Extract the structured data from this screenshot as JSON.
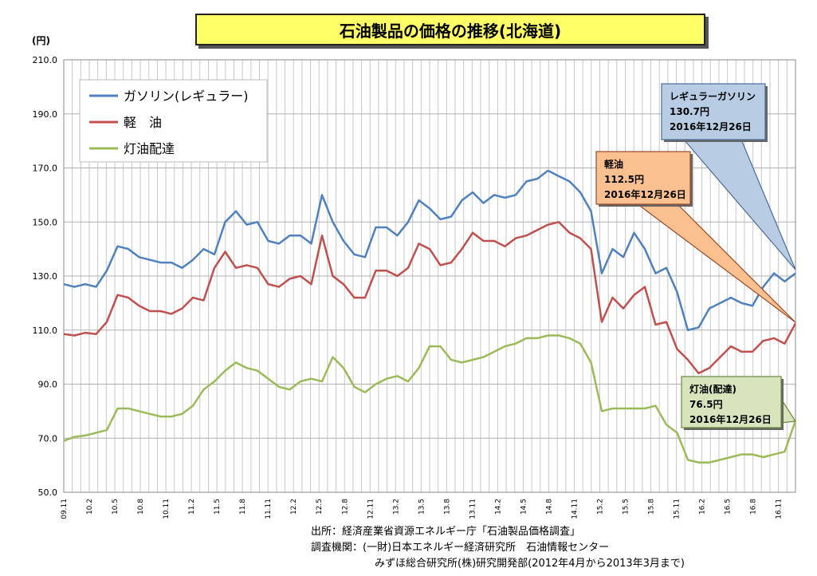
{
  "title": "石油製品の価格の推移(北海道)",
  "unit": "(円)",
  "chart_data": {
    "type": "line",
    "title": "石油製品の価格の推移(北海道)",
    "ylabel": "(円)",
    "ylim": [
      50,
      210
    ],
    "yticks": [
      "210.0",
      "190.0",
      "170.0",
      "150.0",
      "130.0",
      "110.0",
      "90.0",
      "70.0",
      "50.0"
    ],
    "x_tick_labels": [
      "09.11",
      "10.2",
      "10.5",
      "10.8",
      "10.11",
      "11.2",
      "11.5",
      "11.8",
      "11.11",
      "12.2",
      "12.5",
      "12.8",
      "12.11",
      "13.2",
      "13.5",
      "13.8",
      "13.11",
      "14.2",
      "14.5",
      "14.8",
      "14.11",
      "15.2",
      "15.5",
      "15.8",
      "15.11",
      "16.2",
      "16.5",
      "16.8",
      "16.11"
    ],
    "legend": [
      "ガソリン(レギュラー)",
      "軽　油",
      "灯油配達"
    ],
    "series": [
      {
        "name": "ガソリン(レギュラー)",
        "color": "#4f81bd",
        "values": [
          127,
          126,
          127,
          126,
          132,
          141,
          140,
          137,
          136,
          135,
          135,
          133,
          136,
          140,
          138,
          150,
          154,
          149,
          150,
          143,
          142,
          145,
          145,
          142,
          160,
          150,
          143,
          138,
          137,
          148,
          148,
          145,
          150,
          158,
          155,
          151,
          152,
          158,
          161,
          157,
          160,
          159,
          160,
          165,
          166,
          169,
          167,
          165,
          161,
          154,
          131,
          140,
          137,
          146,
          140,
          131,
          133,
          124,
          110,
          111,
          118,
          120,
          122,
          120,
          119,
          126,
          131,
          128,
          131
        ]
      },
      {
        "name": "軽　油",
        "color": "#c0504d",
        "values": [
          108.5,
          108,
          109,
          108.5,
          113,
          123,
          122,
          119,
          117,
          117,
          116,
          118,
          122,
          121,
          133,
          139,
          133,
          134,
          133,
          127,
          126,
          129,
          130,
          127,
          145,
          130,
          127,
          122,
          122,
          132,
          132,
          130,
          133,
          142,
          140,
          134,
          135,
          140,
          146,
          143,
          143,
          141,
          144,
          145,
          147,
          149,
          150,
          146,
          144,
          140,
          113,
          122,
          118,
          123,
          126,
          112,
          113,
          103,
          99,
          94,
          96,
          100,
          104,
          102,
          102,
          106,
          107,
          105,
          112.5
        ]
      },
      {
        "name": "灯油配達",
        "color": "#9bbb59",
        "values": [
          69,
          70.5,
          71,
          72,
          73,
          81,
          81,
          80,
          79,
          78,
          78,
          79,
          82,
          88,
          91,
          95,
          98,
          96,
          95,
          92,
          89,
          88,
          91,
          92,
          91,
          100,
          96,
          89,
          87,
          90,
          92,
          93,
          91,
          96,
          104,
          104,
          99,
          98,
          99,
          100,
          102,
          104,
          105,
          107,
          107,
          108,
          108,
          107,
          105,
          98,
          80,
          81,
          81,
          81,
          81,
          82,
          75,
          72,
          62,
          61,
          61,
          62,
          63,
          64,
          64,
          63,
          64,
          65,
          76.5
        ]
      }
    ],
    "annotations": [
      {
        "label": "レギュラーガソリン",
        "value": "130.7円",
        "date": "2016年12月26日",
        "color": "#b8cce4"
      },
      {
        "label": "軽油",
        "value": "112.5円",
        "date": "2016年12月26日",
        "color": "#fac090"
      },
      {
        "label": "灯油(配達)",
        "value": "76.5円",
        "date": "2016年12月26日",
        "color": "#d7e4bc"
      }
    ]
  },
  "source": {
    "line1": "出所：経済産業省資源エネルギー庁「石油製品価格調査」",
    "line2": "調査機関：(一財)日本エネルギー経済研究所　石油情報センター",
    "line3": "みずほ総合研究所(株)研究開発部(2012年4月から2013年3月まで)"
  }
}
